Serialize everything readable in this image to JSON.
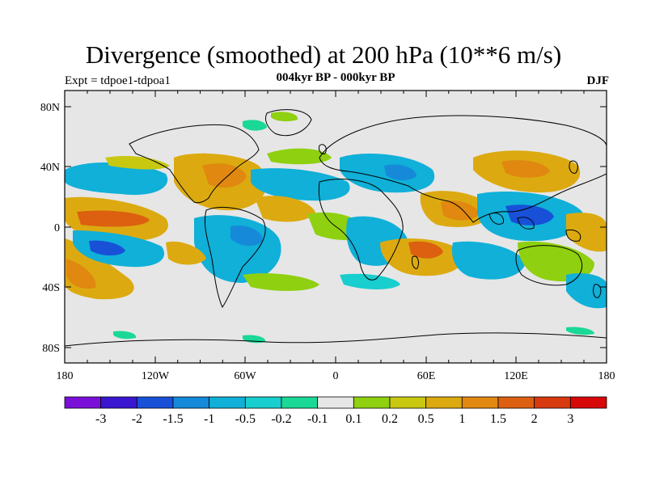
{
  "title": "Divergence (smoothed) at 200 hPa (10**6 m/s)",
  "experiment": "Expt = tdpoe1-tdpoa1",
  "period": "004kyr BP - 000kyr BP",
  "season": "DJF",
  "lon_labels": [
    "180",
    "120W",
    "60W",
    "0",
    "60E",
    "120E",
    "180"
  ],
  "lat_labels": [
    "80N",
    "40N",
    "0",
    "40S",
    "80S"
  ],
  "colorbar": {
    "labels": [
      "-3",
      "-2",
      "-1.5",
      "-1",
      "-0.5",
      "-0.2",
      "-0.1",
      "0.1",
      "0.2",
      "0.5",
      "1",
      "1.5",
      "2",
      "3"
    ],
    "colors": [
      "#7a10d8",
      "#3a16d0",
      "#1850d8",
      "#168ad8",
      "#10b0d8",
      "#18cece",
      "#1ad896",
      "#e6e6e6",
      "#8fd010",
      "#c8c810",
      "#dcaa10",
      "#e08810",
      "#dc6010",
      "#d83a10",
      "#d80808"
    ]
  },
  "map_colors": {
    "neutral": "#e6e6e6",
    "neg_green": "#1ad896",
    "neg_cyan": "#18cece",
    "neg_light_blue": "#10b0d8",
    "neg_blue": "#168ad8",
    "neg_dark_blue": "#1850d8",
    "pos_green": "#8fd010",
    "pos_yellow": "#c8c810",
    "pos_orange": "#dcaa10",
    "pos_dark_orange": "#e08810",
    "pos_red": "#dc6010"
  }
}
